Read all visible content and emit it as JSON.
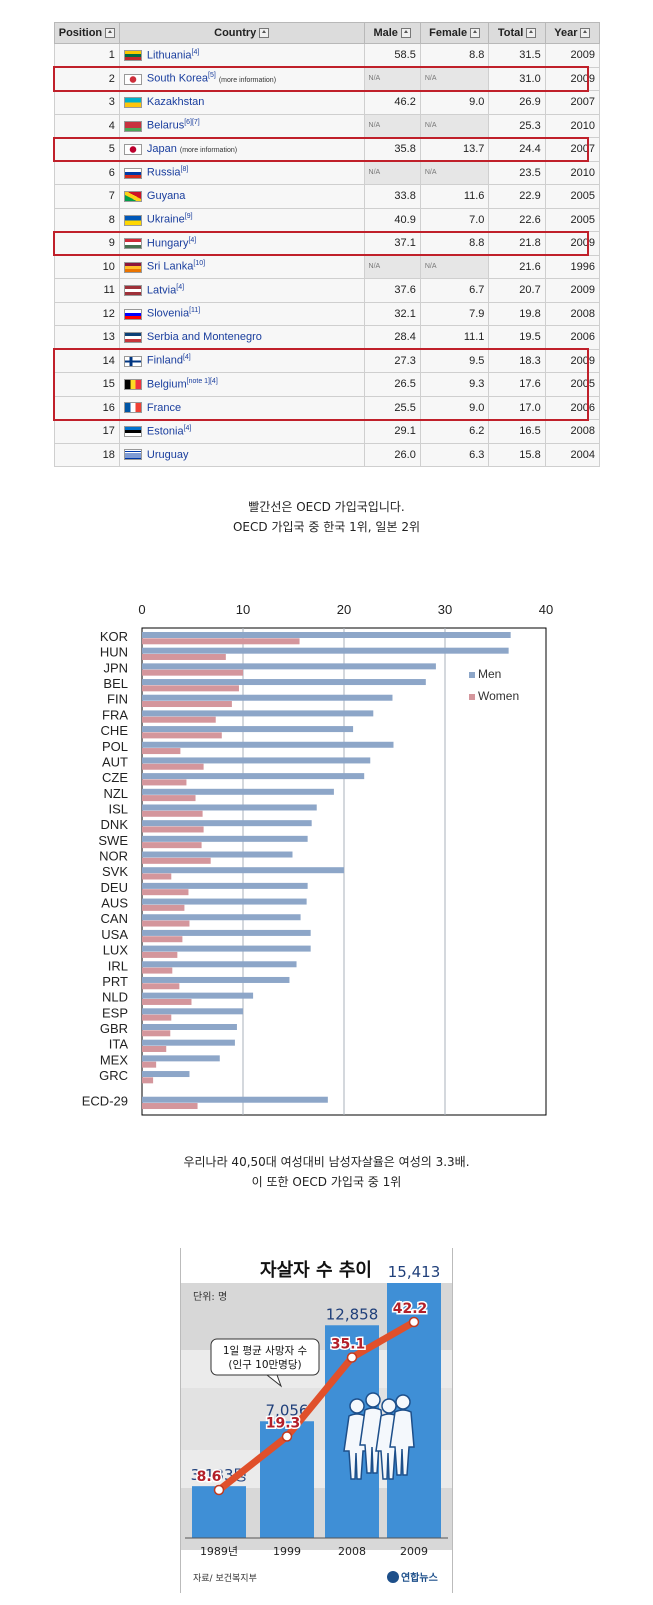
{
  "table": {
    "headers": [
      "Position",
      "Country",
      "Male",
      "Female",
      "Total",
      "Year"
    ],
    "rows": [
      {
        "pos": "1",
        "country": "Lithuania",
        "ref": "[4]",
        "male": "58.5",
        "female": "8.8",
        "total": "31.5",
        "year": "2009",
        "flag": "lithuania"
      },
      {
        "pos": "2",
        "country": "South Korea",
        "ref": "[5]",
        "more": "(more information)",
        "male": "N/A",
        "female": "N/A",
        "total": "31.0",
        "year": "2009",
        "flag": "korea",
        "hl": true
      },
      {
        "pos": "3",
        "country": "Kazakhstan",
        "ref": "",
        "male": "46.2",
        "female": "9.0",
        "total": "26.9",
        "year": "2007",
        "flag": "kazakhstan"
      },
      {
        "pos": "4",
        "country": "Belarus",
        "ref": "[6][7]",
        "male": "N/A",
        "female": "N/A",
        "total": "25.3",
        "year": "2010",
        "flag": "belarus"
      },
      {
        "pos": "5",
        "country": "Japan",
        "ref": "",
        "more": "(more information)",
        "male": "35.8",
        "female": "13.7",
        "total": "24.4",
        "year": "2007",
        "flag": "japan",
        "hl": true
      },
      {
        "pos": "6",
        "country": "Russia",
        "ref": "[8]",
        "male": "N/A",
        "female": "N/A",
        "total": "23.5",
        "year": "2010",
        "flag": "russia"
      },
      {
        "pos": "7",
        "country": "Guyana",
        "ref": "",
        "male": "33.8",
        "female": "11.6",
        "total": "22.9",
        "year": "2005",
        "flag": "guyana"
      },
      {
        "pos": "8",
        "country": "Ukraine",
        "ref": "[9]",
        "male": "40.9",
        "female": "7.0",
        "total": "22.6",
        "year": "2005",
        "flag": "ukraine"
      },
      {
        "pos": "9",
        "country": "Hungary",
        "ref": "[4]",
        "male": "37.1",
        "female": "8.8",
        "total": "21.8",
        "year": "2009",
        "flag": "hungary",
        "hl": true
      },
      {
        "pos": "10",
        "country": "Sri Lanka",
        "ref": "[10]",
        "male": "N/A",
        "female": "N/A",
        "total": "21.6",
        "year": "1996",
        "flag": "srilanka"
      },
      {
        "pos": "11",
        "country": "Latvia",
        "ref": "[4]",
        "male": "37.6",
        "female": "6.7",
        "total": "20.7",
        "year": "2009",
        "flag": "latvia"
      },
      {
        "pos": "12",
        "country": "Slovenia",
        "ref": "[11]",
        "male": "32.1",
        "female": "7.9",
        "total": "19.8",
        "year": "2008",
        "flag": "slovenia"
      },
      {
        "pos": "13",
        "country": "Serbia and Montenegro",
        "ref": "",
        "male": "28.4",
        "female": "11.1",
        "total": "19.5",
        "year": "2006",
        "flag": "serbia"
      },
      {
        "pos": "14",
        "country": "Finland",
        "ref": "[4]",
        "male": "27.3",
        "female": "9.5",
        "total": "18.3",
        "year": "2009",
        "flag": "finland",
        "hl": true
      },
      {
        "pos": "15",
        "country": "Belgium",
        "ref": "[note 1][4]",
        "male": "26.5",
        "female": "9.3",
        "total": "17.6",
        "year": "2005",
        "flag": "belgium",
        "hl": true
      },
      {
        "pos": "16",
        "country": "France",
        "ref": "",
        "male": "25.5",
        "female": "9.0",
        "total": "17.0",
        "year": "2006",
        "flag": "france",
        "hl": true
      },
      {
        "pos": "17",
        "country": "Estonia",
        "ref": "[4]",
        "male": "29.1",
        "female": "6.2",
        "total": "16.5",
        "year": "2008",
        "flag": "estonia"
      },
      {
        "pos": "18",
        "country": "Uruguay",
        "ref": "",
        "male": "26.0",
        "female": "6.3",
        "total": "15.8",
        "year": "2004",
        "flag": "uruguay"
      }
    ]
  },
  "flag_colors": {
    "lithuania": [
      "#f9c800",
      "#006a44",
      "#c1272d"
    ],
    "belarus": [
      "#c8313e",
      "#c8313e",
      "#4aa657"
    ],
    "russia": [
      "#ffffff",
      "#0039a6",
      "#d52b1e"
    ],
    "ukraine": [
      "#0057b7",
      "#ffd700"
    ],
    "hungary": [
      "#ce2939",
      "#ffffff",
      "#477050"
    ],
    "latvia": [
      "#9e3039",
      "#ffffff",
      "#9e3039"
    ],
    "slovenia": [
      "#ffffff",
      "#0000ff",
      "#ff0000"
    ],
    "serbia": [
      "#0c4076",
      "#ffffff",
      "#c6363c"
    ],
    "estonia": [
      "#0072ce",
      "#000000",
      "#ffffff"
    ],
    "belgium": [
      "#000000",
      "#fdda24",
      "#ef3340"
    ],
    "france": [
      "#0055a4",
      "#ffffff",
      "#ef4135"
    ],
    "kazakhstan": [
      "#00afca",
      "#fec50c"
    ],
    "korea": [
      "#ffffff",
      "#cd2e3a",
      "#0047a0"
    ],
    "japan": [
      "#ffffff",
      "#bc002d"
    ],
    "guyana": [
      "#009e49",
      "#fcd116",
      "#ce1126"
    ],
    "srilanka": [
      "#8d153a",
      "#ffbe29",
      "#eb7400"
    ],
    "finland": [
      "#ffffff",
      "#003580"
    ],
    "uruguay": [
      "#ffffff",
      "#0038a8",
      "#fcd116"
    ]
  },
  "captions": {
    "caption1_line1": "빨간선은 OECD 가입국입니다.",
    "caption1_line2": "OECD 가입국 중 한국 1위, 일본 2위",
    "caption2_line1": "우리나라 40,50대 여성대비 남성자살율은 여성의 3.3배.",
    "caption2_line2": "이 또한 OECD 가입국 중 1위"
  },
  "chart_data": [
    {
      "type": "bar",
      "orientation": "horizontal",
      "categories": [
        "KOR",
        "HUN",
        "JPN",
        "BEL",
        "FIN",
        "FRA",
        "CHE",
        "POL",
        "AUT",
        "CZE",
        "NZL",
        "ISL",
        "DNK",
        "SWE",
        "NOR",
        "SVK",
        "DEU",
        "AUS",
        "CAN",
        "USA",
        "LUX",
        "IRL",
        "PRT",
        "NLD",
        "ESP",
        "GBR",
        "ITA",
        "MEX",
        "GRC",
        "ECD-29"
      ],
      "series": [
        {
          "name": "Men",
          "color": "#8da6c8",
          "values": [
            36.5,
            36.3,
            29.1,
            28.1,
            24.8,
            22.9,
            20.9,
            24.9,
            22.6,
            22.0,
            19.0,
            17.3,
            16.8,
            16.4,
            14.9,
            20.0,
            16.4,
            16.3,
            15.7,
            16.7,
            16.7,
            15.3,
            14.6,
            11.0,
            10.0,
            9.4,
            9.2,
            7.7,
            4.7,
            18.4
          ]
        },
        {
          "name": "Women",
          "color": "#d4969c",
          "values": [
            15.6,
            8.3,
            10.0,
            9.6,
            8.9,
            7.3,
            7.9,
            3.8,
            6.1,
            4.4,
            5.3,
            6.0,
            6.1,
            5.9,
            6.8,
            2.9,
            4.6,
            4.2,
            4.7,
            4.0,
            3.5,
            3.0,
            3.7,
            4.9,
            2.9,
            2.8,
            2.4,
            1.4,
            1.1,
            5.5
          ]
        }
      ],
      "xlim": [
        0,
        40
      ],
      "xticks": [
        "0",
        "10",
        "20",
        "30",
        "40"
      ],
      "legend_position": "top-right",
      "gridlines": "vertical"
    },
    {
      "type": "bar",
      "title": "자살자 수 추이",
      "unit_label": "단위: 명",
      "categories": [
        "1989년",
        "1999",
        "2008",
        "2009"
      ],
      "bar_values": [
        3133,
        7056,
        12858,
        15413
      ],
      "bar_labels": [
        "3,133명",
        "7,056",
        "12,858",
        "15,413"
      ],
      "bar_color": "#3f8fd6",
      "line_series": {
        "name": "1일 평균 사망자 수 (인구 10만명당)",
        "values": [
          8.6,
          19.3,
          35.1,
          42.2
        ],
        "color": "#e0502b"
      },
      "callout_line1": "1일 평균 사망자 수",
      "callout_line2": "(인구 10만명당)",
      "source": "자료/ 보건복지부",
      "logo": "연합뉴스"
    }
  ]
}
